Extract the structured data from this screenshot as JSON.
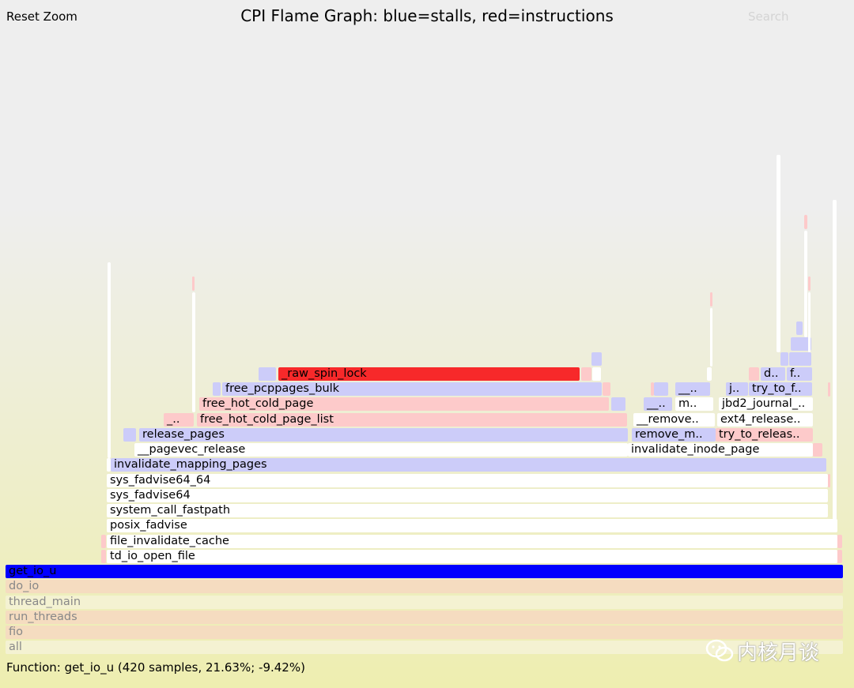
{
  "header": {
    "reset_zoom": "Reset Zoom",
    "title": "CPI Flame Graph: blue=stalls, red=instructions",
    "search": "Search"
  },
  "frames": {
    "all": "all",
    "fio": "fio",
    "run_threads": "run_threads",
    "thread_main": "thread_main",
    "do_io": "do_io",
    "get_io_u": "get_io_u",
    "td_io_open_file": "td_io_open_file",
    "file_invalidate_cache": "file_invalidate_cache",
    "posix_fadvise": "posix_fadvise",
    "system_call_fastpath": "system_call_fastpath",
    "sys_fadvise64": "sys_fadvise64",
    "sys_fadvise64_64": "sys_fadvise64_64",
    "invalidate_mapping_pages": "invalidate_mapping_pages",
    "pagevec_release": "__pagevec_release",
    "invalidate_inode_page": "invalidate_inode_page",
    "release_pages": "release_pages",
    "remove_m": "remove_m..",
    "try_to_releas": "try_to_releas..",
    "underscore_short": "_..",
    "free_hot_cold_page_list": "free_hot_cold_page_list",
    "remove_dots": "__remove..",
    "ext4_release": "ext4_release..",
    "free_hot_cold_page": "free_hot_cold_page",
    "dunder_short": "__..",
    "m_short": "m..",
    "jbd2_journal": "jbd2_journal_..",
    "free_pcppages_bulk": "free_pcppages_bulk",
    "dunder_short2": "__..",
    "j_short": "j..",
    "try_to_f": "try_to_f..",
    "raw_spin_lock": "_raw_spin_lock",
    "d_short": "d..",
    "f_short": "f.."
  },
  "status": {
    "function_info": "Function: get_io_u (420 samples, 21.63%; -9.42%)"
  },
  "watermark": {
    "text": "内核月谈",
    "icon": "wechat-icon"
  },
  "colors": {
    "stalls": "#ccccf9",
    "instructions": "#f7292a",
    "selected": "#0000ff"
  }
}
